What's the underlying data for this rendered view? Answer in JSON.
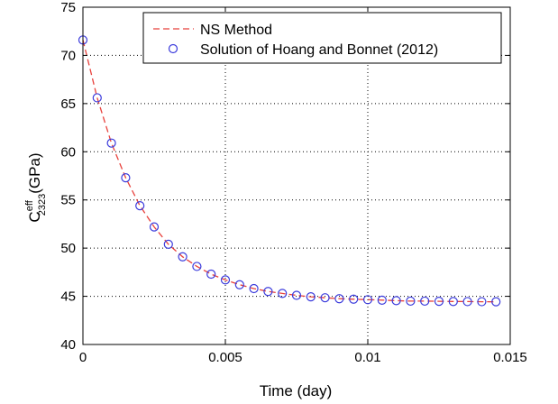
{
  "chart_data": {
    "type": "line",
    "xlabel": "Time (day)",
    "ylabel": {
      "base": "C",
      "superscript": "eff",
      "subscript": "2323",
      "unit": "(GPa)"
    },
    "xlim": [
      0,
      0.015
    ],
    "ylim": [
      40,
      75
    ],
    "x_ticks": [
      0,
      0.005,
      0.01,
      0.015
    ],
    "x_tick_labels": [
      "0",
      "0.005",
      "0.01",
      "0.015"
    ],
    "y_ticks": [
      40,
      45,
      50,
      55,
      60,
      65,
      70,
      75
    ],
    "y_tick_labels": [
      "40",
      "45",
      "50",
      "55",
      "60",
      "65",
      "70",
      "75"
    ],
    "grid": true,
    "legend_position": "top-right",
    "series": [
      {
        "name": "NS Method",
        "style": "dashed-line",
        "color": "#e8413c",
        "x": [
          0,
          0.0005,
          0.001,
          0.0015,
          0.002,
          0.0025,
          0.003,
          0.0035,
          0.004,
          0.0045,
          0.005,
          0.0055,
          0.006,
          0.0065,
          0.007,
          0.0075,
          0.008,
          0.0085,
          0.009,
          0.0095,
          0.01,
          0.0105,
          0.011,
          0.0115,
          0.012,
          0.0125,
          0.013,
          0.0135,
          0.014,
          0.0145
        ],
        "y": [
          71.6,
          65.6,
          60.9,
          57.3,
          54.4,
          52.2,
          50.4,
          49.1,
          48.1,
          47.3,
          46.7,
          46.2,
          45.8,
          45.5,
          45.3,
          45.1,
          44.95,
          44.85,
          44.75,
          44.7,
          44.65,
          44.6,
          44.55,
          44.5,
          44.5,
          44.48,
          44.46,
          44.45,
          44.44,
          44.43
        ]
      },
      {
        "name": "Solution of Hoang and Bonnet (2012)",
        "style": "open-circle-markers",
        "color": "#3b3bdc",
        "x": [
          0,
          0.0005,
          0.001,
          0.0015,
          0.002,
          0.0025,
          0.003,
          0.0035,
          0.004,
          0.0045,
          0.005,
          0.0055,
          0.006,
          0.0065,
          0.007,
          0.0075,
          0.008,
          0.0085,
          0.009,
          0.0095,
          0.01,
          0.0105,
          0.011,
          0.0115,
          0.012,
          0.0125,
          0.013,
          0.0135,
          0.014,
          0.0145
        ],
        "y": [
          71.6,
          65.6,
          60.9,
          57.3,
          54.4,
          52.2,
          50.4,
          49.1,
          48.1,
          47.3,
          46.7,
          46.2,
          45.8,
          45.5,
          45.3,
          45.1,
          44.95,
          44.85,
          44.75,
          44.7,
          44.65,
          44.6,
          44.55,
          44.5,
          44.5,
          44.48,
          44.46,
          44.45,
          44.44,
          44.43
        ]
      }
    ]
  }
}
